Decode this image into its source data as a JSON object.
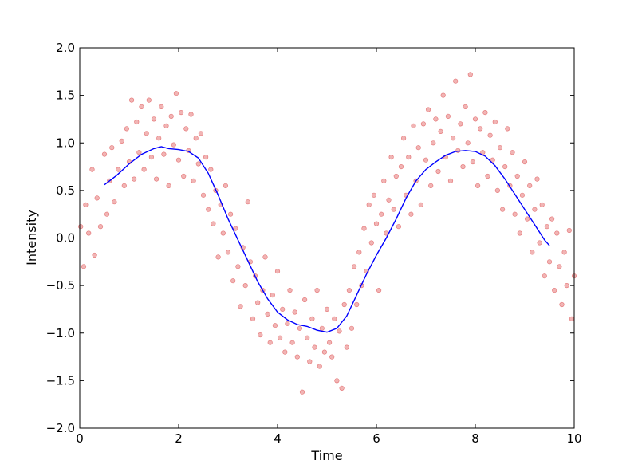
{
  "chart_data": {
    "type": "scatter",
    "title": "",
    "xlabel": "Time",
    "ylabel": "Intensity",
    "xlim": [
      0,
      10
    ],
    "ylim": [
      -2.0,
      2.0
    ],
    "xticks": [
      0,
      2,
      4,
      6,
      8,
      10
    ],
    "xtick_labels": [
      "0",
      "2",
      "4",
      "6",
      "8",
      "10"
    ],
    "yticks": [
      -2.0,
      -1.5,
      -1.0,
      -0.5,
      0.0,
      0.5,
      1.0,
      1.5,
      2.0
    ],
    "ytick_labels": [
      "−2.0",
      "−1.5",
      "−1.0",
      "−0.5",
      "0.0",
      "0.5",
      "1.0",
      "1.5",
      "2.0"
    ],
    "grid": false,
    "legend": "none",
    "series": [
      {
        "type": "scatter",
        "color": "#d62728",
        "points": [
          [
            0.02,
            0.12
          ],
          [
            0.08,
            -0.3
          ],
          [
            0.12,
            0.35
          ],
          [
            0.18,
            0.05
          ],
          [
            0.25,
            0.72
          ],
          [
            0.3,
            -0.18
          ],
          [
            0.35,
            0.42
          ],
          [
            0.42,
            0.12
          ],
          [
            0.5,
            0.88
          ],
          [
            0.55,
            0.25
          ],
          [
            0.6,
            0.6
          ],
          [
            0.65,
            0.95
          ],
          [
            0.7,
            0.38
          ],
          [
            0.78,
            0.72
          ],
          [
            0.85,
            1.02
          ],
          [
            0.9,
            0.55
          ],
          [
            0.95,
            1.15
          ],
          [
            1.0,
            0.8
          ],
          [
            1.05,
            1.45
          ],
          [
            1.1,
            0.62
          ],
          [
            1.15,
            1.22
          ],
          [
            1.2,
            0.9
          ],
          [
            1.25,
            1.38
          ],
          [
            1.3,
            0.72
          ],
          [
            1.35,
            1.1
          ],
          [
            1.4,
            1.45
          ],
          [
            1.45,
            0.85
          ],
          [
            1.5,
            1.25
          ],
          [
            1.55,
            0.62
          ],
          [
            1.6,
            1.05
          ],
          [
            1.65,
            1.38
          ],
          [
            1.7,
            0.88
          ],
          [
            1.75,
            1.18
          ],
          [
            1.8,
            0.55
          ],
          [
            1.85,
            1.28
          ],
          [
            1.9,
            0.98
          ],
          [
            1.95,
            1.52
          ],
          [
            2.0,
            0.82
          ],
          [
            2.05,
            1.32
          ],
          [
            2.1,
            0.65
          ],
          [
            2.15,
            1.15
          ],
          [
            2.2,
            0.92
          ],
          [
            2.25,
            1.3
          ],
          [
            2.3,
            0.6
          ],
          [
            2.35,
            1.05
          ],
          [
            2.4,
            0.78
          ],
          [
            2.45,
            1.1
          ],
          [
            2.5,
            0.45
          ],
          [
            2.55,
            0.85
          ],
          [
            2.6,
            0.3
          ],
          [
            2.65,
            0.72
          ],
          [
            2.7,
            0.15
          ],
          [
            2.75,
            0.5
          ],
          [
            2.8,
            -0.2
          ],
          [
            2.85,
            0.35
          ],
          [
            2.9,
            0.05
          ],
          [
            2.95,
            0.55
          ],
          [
            3.0,
            -0.15
          ],
          [
            3.05,
            0.25
          ],
          [
            3.1,
            -0.45
          ],
          [
            3.15,
            0.1
          ],
          [
            3.2,
            -0.3
          ],
          [
            3.25,
            -0.72
          ],
          [
            3.3,
            -0.1
          ],
          [
            3.35,
            -0.5
          ],
          [
            3.4,
            0.38
          ],
          [
            3.45,
            -0.25
          ],
          [
            3.5,
            -0.85
          ],
          [
            3.55,
            -0.4
          ],
          [
            3.6,
            -0.68
          ],
          [
            3.65,
            -1.02
          ],
          [
            3.7,
            -0.55
          ],
          [
            3.75,
            -0.2
          ],
          [
            3.8,
            -0.8
          ],
          [
            3.85,
            -1.1
          ],
          [
            3.9,
            -0.6
          ],
          [
            3.95,
            -0.92
          ],
          [
            4.0,
            -0.35
          ],
          [
            4.05,
            -1.05
          ],
          [
            4.1,
            -0.75
          ],
          [
            4.15,
            -1.2
          ],
          [
            4.2,
            -0.9
          ],
          [
            4.25,
            -0.55
          ],
          [
            4.3,
            -1.1
          ],
          [
            4.35,
            -0.78
          ],
          [
            4.4,
            -1.25
          ],
          [
            4.45,
            -0.95
          ],
          [
            4.5,
            -1.62
          ],
          [
            4.55,
            -0.65
          ],
          [
            4.6,
            -1.05
          ],
          [
            4.65,
            -1.3
          ],
          [
            4.7,
            -0.85
          ],
          [
            4.75,
            -1.15
          ],
          [
            4.8,
            -0.55
          ],
          [
            4.85,
            -1.35
          ],
          [
            4.9,
            -0.95
          ],
          [
            4.95,
            -1.2
          ],
          [
            5.0,
            -0.75
          ],
          [
            5.05,
            -1.1
          ],
          [
            5.1,
            -1.25
          ],
          [
            5.15,
            -0.85
          ],
          [
            5.2,
            -1.5
          ],
          [
            5.25,
            -0.98
          ],
          [
            5.3,
            -1.58
          ],
          [
            5.35,
            -0.7
          ],
          [
            5.4,
            -1.15
          ],
          [
            5.45,
            -0.55
          ],
          [
            5.5,
            -0.95
          ],
          [
            5.55,
            -0.3
          ],
          [
            5.6,
            -0.7
          ],
          [
            5.65,
            -0.15
          ],
          [
            5.7,
            -0.5
          ],
          [
            5.75,
            0.1
          ],
          [
            5.8,
            -0.35
          ],
          [
            5.85,
            0.35
          ],
          [
            5.9,
            -0.05
          ],
          [
            5.95,
            0.45
          ],
          [
            6.0,
            0.15
          ],
          [
            6.05,
            -0.55
          ],
          [
            6.1,
            0.25
          ],
          [
            6.15,
            0.6
          ],
          [
            6.2,
            0.05
          ],
          [
            6.25,
            0.4
          ],
          [
            6.3,
            0.85
          ],
          [
            6.35,
            0.3
          ],
          [
            6.4,
            0.65
          ],
          [
            6.45,
            0.12
          ],
          [
            6.5,
            0.75
          ],
          [
            6.55,
            1.05
          ],
          [
            6.6,
            0.45
          ],
          [
            6.65,
            0.85
          ],
          [
            6.7,
            0.25
          ],
          [
            6.75,
            1.18
          ],
          [
            6.8,
            0.6
          ],
          [
            6.85,
            0.95
          ],
          [
            6.9,
            0.35
          ],
          [
            6.95,
            1.2
          ],
          [
            7.0,
            0.82
          ],
          [
            7.05,
            1.35
          ],
          [
            7.1,
            0.55
          ],
          [
            7.15,
            1.0
          ],
          [
            7.2,
            1.25
          ],
          [
            7.25,
            0.7
          ],
          [
            7.3,
            1.12
          ],
          [
            7.35,
            1.5
          ],
          [
            7.4,
            0.85
          ],
          [
            7.45,
            1.28
          ],
          [
            7.5,
            0.6
          ],
          [
            7.55,
            1.05
          ],
          [
            7.6,
            1.65
          ],
          [
            7.65,
            0.92
          ],
          [
            7.7,
            1.2
          ],
          [
            7.75,
            0.75
          ],
          [
            7.8,
            1.38
          ],
          [
            7.85,
            1.0
          ],
          [
            7.9,
            1.72
          ],
          [
            7.95,
            0.8
          ],
          [
            8.0,
            1.25
          ],
          [
            8.05,
            0.55
          ],
          [
            8.1,
            1.15
          ],
          [
            8.15,
            0.9
          ],
          [
            8.2,
            1.32
          ],
          [
            8.25,
            0.65
          ],
          [
            8.3,
            1.08
          ],
          [
            8.35,
            0.82
          ],
          [
            8.4,
            1.22
          ],
          [
            8.45,
            0.5
          ],
          [
            8.5,
            0.95
          ],
          [
            8.55,
            0.3
          ],
          [
            8.6,
            0.75
          ],
          [
            8.65,
            1.15
          ],
          [
            8.7,
            0.55
          ],
          [
            8.75,
            0.9
          ],
          [
            8.8,
            0.25
          ],
          [
            8.85,
            0.65
          ],
          [
            8.9,
            0.05
          ],
          [
            8.95,
            0.45
          ],
          [
            9.0,
            0.8
          ],
          [
            9.05,
            0.2
          ],
          [
            9.1,
            0.55
          ],
          [
            9.15,
            -0.15
          ],
          [
            9.2,
            0.3
          ],
          [
            9.25,
            0.62
          ],
          [
            9.3,
            -0.05
          ],
          [
            9.35,
            0.35
          ],
          [
            9.4,
            -0.4
          ],
          [
            9.45,
            0.12
          ],
          [
            9.5,
            -0.25
          ],
          [
            9.55,
            0.2
          ],
          [
            9.6,
            -0.55
          ],
          [
            9.65,
            0.05
          ],
          [
            9.7,
            -0.3
          ],
          [
            9.75,
            -0.7
          ],
          [
            9.8,
            -0.15
          ],
          [
            9.85,
            -0.5
          ],
          [
            9.9,
            0.08
          ],
          [
            9.95,
            -0.85
          ],
          [
            10.0,
            -0.4
          ]
        ]
      },
      {
        "type": "line",
        "color": "#0000ff",
        "points": [
          [
            0.5,
            0.56
          ],
          [
            0.75,
            0.66
          ],
          [
            1.0,
            0.78
          ],
          [
            1.25,
            0.88
          ],
          [
            1.5,
            0.94
          ],
          [
            1.65,
            0.96
          ],
          [
            1.8,
            0.94
          ],
          [
            2.0,
            0.93
          ],
          [
            2.2,
            0.91
          ],
          [
            2.4,
            0.84
          ],
          [
            2.6,
            0.68
          ],
          [
            2.8,
            0.45
          ],
          [
            3.0,
            0.2
          ],
          [
            3.2,
            -0.02
          ],
          [
            3.4,
            -0.24
          ],
          [
            3.6,
            -0.46
          ],
          [
            3.8,
            -0.64
          ],
          [
            4.0,
            -0.78
          ],
          [
            4.2,
            -0.86
          ],
          [
            4.4,
            -0.91
          ],
          [
            4.6,
            -0.93
          ],
          [
            4.8,
            -0.97
          ],
          [
            5.0,
            -0.99
          ],
          [
            5.2,
            -0.95
          ],
          [
            5.4,
            -0.82
          ],
          [
            5.6,
            -0.6
          ],
          [
            5.8,
            -0.38
          ],
          [
            6.0,
            -0.18
          ],
          [
            6.2,
            0.0
          ],
          [
            6.4,
            0.2
          ],
          [
            6.6,
            0.42
          ],
          [
            6.8,
            0.6
          ],
          [
            7.0,
            0.72
          ],
          [
            7.2,
            0.8
          ],
          [
            7.4,
            0.87
          ],
          [
            7.6,
            0.91
          ],
          [
            7.8,
            0.92
          ],
          [
            8.0,
            0.91
          ],
          [
            8.2,
            0.86
          ],
          [
            8.4,
            0.76
          ],
          [
            8.6,
            0.62
          ],
          [
            8.8,
            0.46
          ],
          [
            9.0,
            0.3
          ],
          [
            9.2,
            0.14
          ],
          [
            9.4,
            -0.02
          ],
          [
            9.5,
            -0.08
          ]
        ]
      }
    ]
  }
}
